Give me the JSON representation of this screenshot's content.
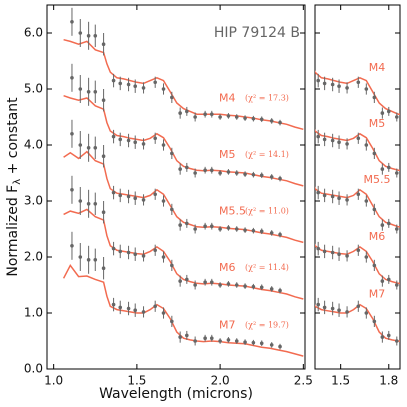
{
  "chart_data": {
    "type": "line",
    "title": "HIP 79124 B",
    "xlabel": "Wavelength (microns)",
    "ylabel_parts": [
      "Normalized F",
      "λ",
      " + constant"
    ],
    "xlim": [
      0.96,
      2.51
    ],
    "xticks": [
      {
        "value": 1,
        "label": "1.0"
      },
      1.5,
      {
        "value": 2,
        "label": "2.0"
      },
      2.5
    ],
    "ylim": [
      0,
      6.5
    ],
    "yticks": [
      {
        "value": 0,
        "label": "0.0"
      },
      {
        "value": 1,
        "label": "1.0"
      },
      {
        "value": 2,
        "label": "2.0"
      },
      {
        "value": 3,
        "label": "3.0"
      },
      {
        "value": 4,
        "label": "4.0"
      },
      {
        "value": 5,
        "label": "5.0"
      },
      {
        "value": 6,
        "label": "6.0"
      }
    ],
    "zoom_panel": {
      "xlim": [
        1.34,
        1.87
      ],
      "xticks": [
        1.5,
        1.8
      ]
    },
    "model_color": "#f26b50",
    "model_x": [
      1.06,
      1.1,
      1.15,
      1.2,
      1.25,
      1.3,
      1.32,
      1.34,
      1.38,
      1.42,
      1.46,
      1.5,
      1.54,
      1.58,
      1.62,
      1.66,
      1.7,
      1.74,
      1.78,
      1.82,
      1.86,
      1.9,
      1.95,
      2.0,
      2.05,
      2.1,
      2.15,
      2.2,
      2.25,
      2.3,
      2.35,
      2.4,
      2.45,
      2.5
    ],
    "models": [
      {
        "name": "M4",
        "annotation": "(χ² = 17.3)",
        "values": [
          5.88,
          5.85,
          5.8,
          5.85,
          5.7,
          5.65,
          5.45,
          5.3,
          5.2,
          5.18,
          5.15,
          5.12,
          5.1,
          5.15,
          5.2,
          5.15,
          4.95,
          4.75,
          4.65,
          4.6,
          4.55,
          4.55,
          4.55,
          4.55,
          4.53,
          4.52,
          4.5,
          4.48,
          4.45,
          4.43,
          4.4,
          4.37,
          4.32,
          4.28
        ]
      },
      {
        "name": "M5",
        "annotation": "(χ² = 14.1)",
        "values": [
          4.88,
          4.84,
          4.8,
          4.84,
          4.7,
          4.64,
          4.4,
          4.25,
          4.17,
          4.15,
          4.12,
          4.1,
          4.08,
          4.12,
          4.2,
          4.13,
          3.94,
          3.72,
          3.62,
          3.58,
          3.55,
          3.54,
          3.55,
          3.54,
          3.52,
          3.51,
          3.5,
          3.47,
          3.44,
          3.42,
          3.39,
          3.36,
          3.31,
          3.27
        ]
      },
      {
        "name": "M5.5",
        "annotation": "(χ² = 11.0)",
        "values": [
          3.78,
          3.86,
          3.76,
          3.88,
          3.72,
          3.66,
          3.4,
          3.22,
          3.14,
          3.12,
          3.1,
          3.08,
          3.06,
          3.1,
          3.2,
          3.12,
          2.92,
          2.72,
          2.62,
          2.58,
          2.54,
          2.53,
          2.54,
          2.53,
          2.51,
          2.5,
          2.49,
          2.46,
          2.43,
          2.41,
          2.38,
          2.35,
          2.3,
          2.26
        ]
      },
      {
        "name": "M6",
        "annotation": "(χ² = 11.4)",
        "values": [
          2.76,
          2.82,
          2.78,
          2.85,
          2.72,
          2.66,
          2.38,
          2.2,
          2.12,
          2.1,
          2.08,
          2.06,
          2.05,
          2.1,
          2.18,
          2.1,
          1.92,
          1.7,
          1.6,
          1.56,
          1.53,
          1.52,
          1.53,
          1.52,
          1.5,
          1.49,
          1.48,
          1.45,
          1.42,
          1.4,
          1.37,
          1.34,
          1.29,
          1.25
        ]
      },
      {
        "name": "M7",
        "annotation": "(χ² = 19.7)",
        "values": [
          1.62,
          1.85,
          1.65,
          1.66,
          1.6,
          1.55,
          1.3,
          1.12,
          1.06,
          1.04,
          1.02,
          1.0,
          1.0,
          1.06,
          1.15,
          1.08,
          0.9,
          0.66,
          0.55,
          0.52,
          0.5,
          0.49,
          0.5,
          0.49,
          0.47,
          0.46,
          0.45,
          0.42,
          0.39,
          0.37,
          0.34,
          0.31,
          0.27,
          0.23
        ]
      }
    ],
    "obs_color": "#666666",
    "obs_x": [
      1.11,
      1.16,
      1.21,
      1.25,
      1.3,
      1.36,
      1.4,
      1.45,
      1.49,
      1.54,
      1.61,
      1.66,
      1.71,
      1.76,
      1.8,
      1.85,
      1.91,
      1.95,
      2.0,
      2.05,
      2.1,
      2.15,
      2.2,
      2.25,
      2.31,
      2.36
    ],
    "observed": [
      {
        "values": [
          6.2,
          6.0,
          5.95,
          5.95,
          5.8,
          5.15,
          5.1,
          5.08,
          5.05,
          5.02,
          5.12,
          5.0,
          4.85,
          4.57,
          4.6,
          4.5,
          4.55,
          4.55,
          4.5,
          4.52,
          4.5,
          4.48,
          4.47,
          4.46,
          4.43,
          4.4
        ],
        "errors": [
          0.25,
          0.25,
          0.25,
          0.2,
          0.2,
          0.12,
          0.12,
          0.12,
          0.12,
          0.1,
          0.1,
          0.1,
          0.1,
          0.1,
          0.08,
          0.08,
          0.06,
          0.06,
          0.05,
          0.05,
          0.05,
          0.05,
          0.05,
          0.05,
          0.05,
          0.05
        ]
      },
      {
        "values": [
          5.2,
          5.0,
          4.95,
          4.95,
          4.8,
          4.15,
          4.1,
          4.08,
          4.05,
          4.02,
          4.12,
          4.0,
          3.85,
          3.57,
          3.6,
          3.5,
          3.55,
          3.55,
          3.5,
          3.52,
          3.5,
          3.48,
          3.47,
          3.46,
          3.43,
          3.4
        ],
        "errors": [
          0.25,
          0.25,
          0.25,
          0.2,
          0.2,
          0.12,
          0.12,
          0.12,
          0.12,
          0.1,
          0.1,
          0.1,
          0.1,
          0.1,
          0.08,
          0.08,
          0.06,
          0.06,
          0.05,
          0.05,
          0.05,
          0.05,
          0.05,
          0.05,
          0.05,
          0.05
        ]
      },
      {
        "values": [
          4.2,
          4.0,
          3.95,
          3.95,
          3.8,
          3.15,
          3.1,
          3.08,
          3.05,
          3.02,
          3.12,
          3.0,
          2.85,
          2.57,
          2.6,
          2.5,
          2.55,
          2.55,
          2.5,
          2.52,
          2.5,
          2.48,
          2.47,
          2.46,
          2.43,
          2.4
        ],
        "errors": [
          0.25,
          0.25,
          0.25,
          0.2,
          0.2,
          0.12,
          0.12,
          0.12,
          0.12,
          0.1,
          0.1,
          0.1,
          0.1,
          0.1,
          0.08,
          0.08,
          0.06,
          0.06,
          0.05,
          0.05,
          0.05,
          0.05,
          0.05,
          0.05,
          0.05,
          0.05
        ]
      },
      {
        "values": [
          3.2,
          3.0,
          2.95,
          2.95,
          2.8,
          2.15,
          2.1,
          2.08,
          2.05,
          2.02,
          2.12,
          2.0,
          1.85,
          1.57,
          1.6,
          1.5,
          1.55,
          1.55,
          1.5,
          1.52,
          1.5,
          1.48,
          1.47,
          1.46,
          1.43,
          1.4
        ],
        "errors": [
          0.25,
          0.25,
          0.25,
          0.2,
          0.2,
          0.12,
          0.12,
          0.12,
          0.12,
          0.1,
          0.1,
          0.1,
          0.1,
          0.1,
          0.08,
          0.08,
          0.06,
          0.06,
          0.05,
          0.05,
          0.05,
          0.05,
          0.05,
          0.05,
          0.05,
          0.05
        ]
      },
      {
        "values": [
          2.2,
          2.0,
          1.95,
          1.95,
          1.8,
          1.15,
          1.1,
          1.08,
          1.05,
          1.02,
          1.12,
          1.0,
          0.85,
          0.57,
          0.6,
          0.5,
          0.55,
          0.55,
          0.5,
          0.52,
          0.5,
          0.48,
          0.47,
          0.46,
          0.43,
          0.4
        ],
        "errors": [
          0.25,
          0.25,
          0.25,
          0.2,
          0.2,
          0.12,
          0.12,
          0.12,
          0.12,
          0.1,
          0.1,
          0.1,
          0.1,
          0.1,
          0.08,
          0.08,
          0.06,
          0.06,
          0.05,
          0.05,
          0.05,
          0.05,
          0.05,
          0.05,
          0.05,
          0.05
        ]
      }
    ]
  }
}
